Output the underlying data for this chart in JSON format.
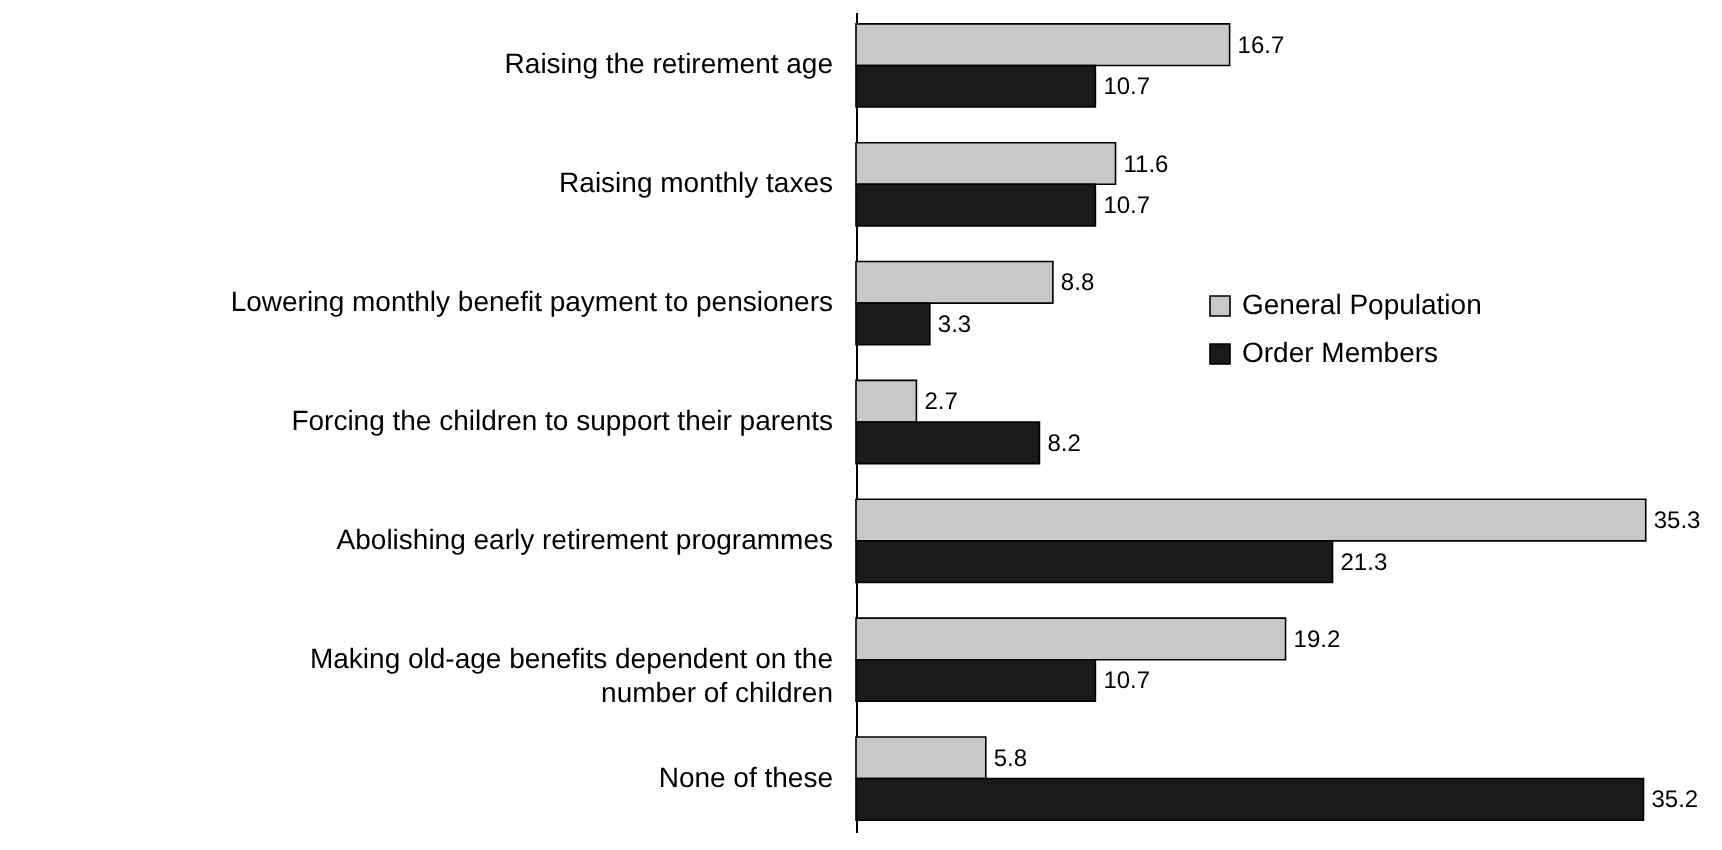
{
  "chart_data": {
    "type": "bar",
    "orientation": "horizontal",
    "data_labels": true,
    "legend": "top right",
    "categories": [
      "Raising the retirement age",
      "Raising monthly taxes",
      "Lowering monthly benefit payment to pensioners",
      "Forcing the children to support their parents",
      "Abolishing early retirement programmes",
      "Making old-age benefits dependent on the number of children",
      "None of these"
    ],
    "series": [
      {
        "name": "General Population",
        "color": "#c8c8c8",
        "values": [
          16.7,
          11.6,
          8.8,
          2.7,
          35.3,
          19.2,
          5.8
        ]
      },
      {
        "name": "Order Members",
        "color": "#1a1a1a",
        "values": [
          10.7,
          10.7,
          3.3,
          8.2,
          21.3,
          10.7,
          35.2
        ]
      }
    ]
  }
}
